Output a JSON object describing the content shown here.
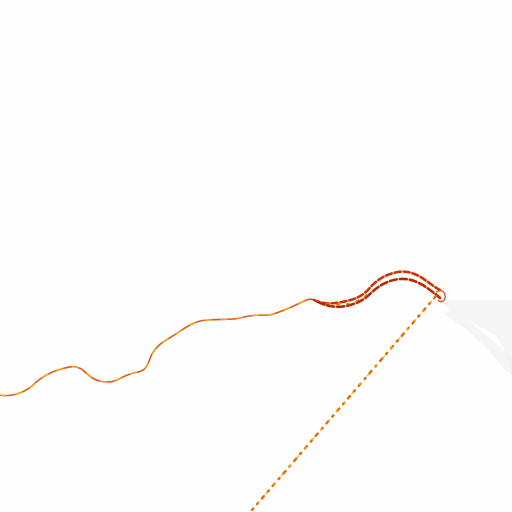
{
  "map": {
    "background_color": "#fefefe",
    "shading_color": "#f3f3f3",
    "layers": [
      {
        "id": "route-main",
        "kind": "solid-route",
        "colors": [
          "#d95a1e",
          "#f2a900",
          "#c0392b"
        ]
      },
      {
        "id": "route-loop-outer",
        "kind": "dashed-route",
        "colors": [
          "#cc3300",
          "#e87a00"
        ]
      },
      {
        "id": "route-loop-inner",
        "kind": "dashed-route",
        "colors": [
          "#b22a00",
          "#f08a00"
        ]
      },
      {
        "id": "route-diagonal",
        "kind": "dotted-route",
        "colors": [
          "#e26a00",
          "#f5b400",
          "#c24400"
        ]
      }
    ]
  }
}
